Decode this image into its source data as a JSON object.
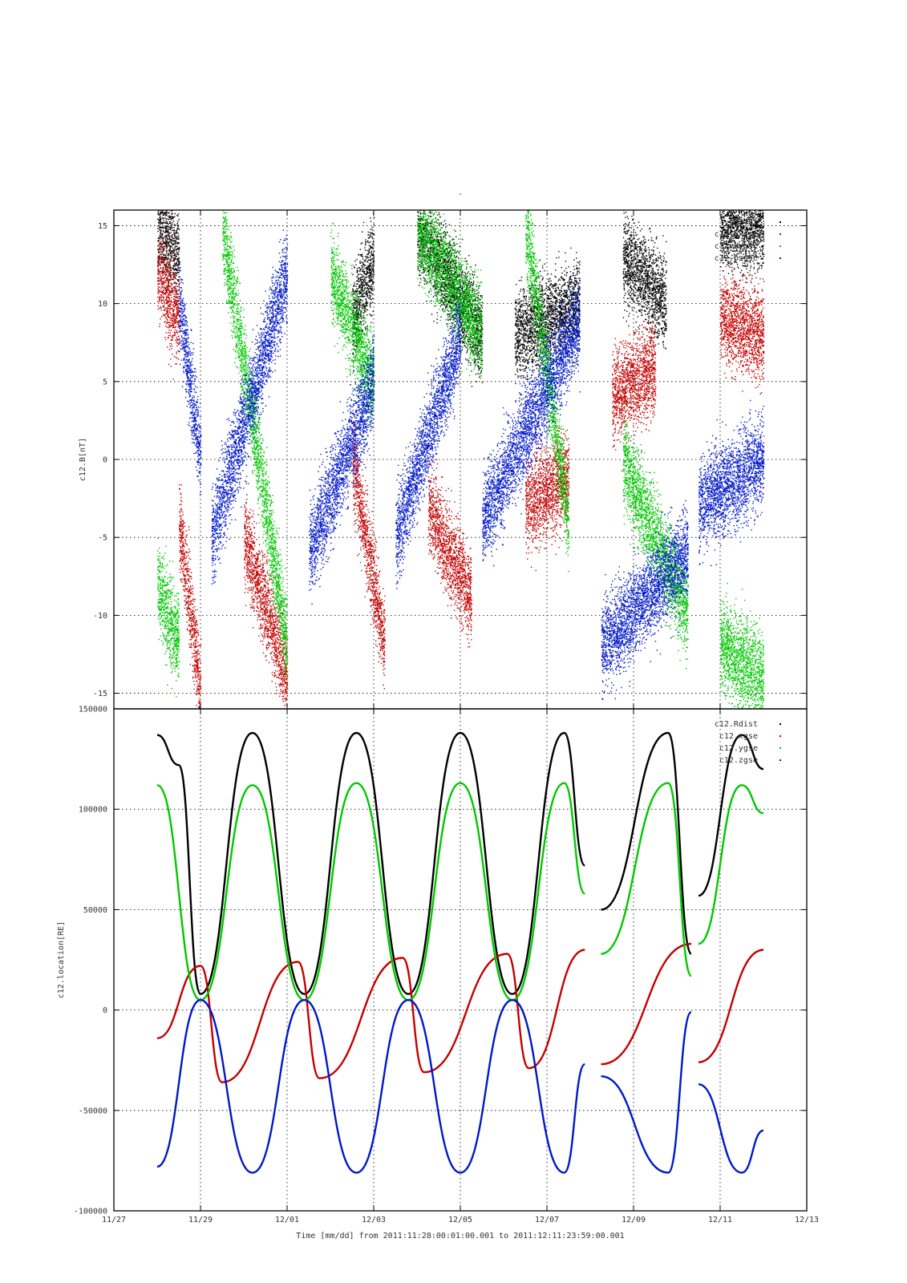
{
  "figure": {
    "top_title": "-",
    "xlabel": "Time [mm/dd]  from 2011:11:28:00:01:00.001  to  2011:12:11:23:59:00.001"
  },
  "colors": {
    "black": "#000000",
    "red": "#c40000",
    "green": "#00c800",
    "blue": "#0018c8"
  },
  "chart_data": [
    {
      "type": "scatter",
      "panel": "top",
      "title": "",
      "xlabel": "",
      "ylabel": "c12.B[nT]",
      "x_axis": "time",
      "xlim": [
        "2011-11-27",
        "2011-12-13"
      ],
      "ylim": [
        -16,
        16
      ],
      "x_ticks": [],
      "y_ticks": [
        -15,
        -10,
        -5,
        0,
        5,
        10,
        15
      ],
      "y_tick_labels": [
        "-15",
        "-10",
        "-5",
        "0",
        "5",
        "10",
        "15"
      ],
      "grid": true,
      "legend_position": "top-right",
      "series": [
        {
          "name": "c12.Bt",
          "color": "black",
          "intervals": [
            {
              "start": "2011-11-28T00:00",
              "end": "2011-11-28T12:00",
              "y0": 15,
              "y1": 13
            },
            {
              "start": "2011-12-02T12:00",
              "end": "2011-12-03T00:00",
              "y0": 9,
              "y1": 13
            },
            {
              "start": "2011-12-04T00:00",
              "end": "2011-12-05T12:00",
              "y0": 15,
              "y1": 8
            },
            {
              "start": "2011-12-06T06:00",
              "end": "2011-12-07T18:00",
              "y0": 8,
              "y1": 10
            },
            {
              "start": "2011-12-08T18:00",
              "end": "2011-12-09T18:00",
              "y0": 13,
              "y1": 10
            },
            {
              "start": "2011-12-11T00:00",
              "end": "2011-12-12T00:00",
              "y0": 15,
              "y1": 15
            }
          ]
        },
        {
          "name": "c12.bxgse",
          "color": "red",
          "intervals": [
            {
              "start": "2011-11-28T00:00",
              "end": "2011-11-28T12:00",
              "y0": 12,
              "y1": 9
            },
            {
              "start": "2011-11-28T12:00",
              "end": "2011-11-29T00:00",
              "y0": -4,
              "y1": -15
            },
            {
              "start": "2011-11-30T00:00",
              "end": "2011-12-01T00:00",
              "y0": -5,
              "y1": -14
            },
            {
              "start": "2011-12-02T12:00",
              "end": "2011-12-03T06:00",
              "y0": 0,
              "y1": -12
            },
            {
              "start": "2011-12-04T06:00",
              "end": "2011-12-05T06:00",
              "y0": -3,
              "y1": -9
            },
            {
              "start": "2011-12-06T12:00",
              "end": "2011-12-07T12:00",
              "y0": -3,
              "y1": -1
            },
            {
              "start": "2011-12-08T12:00",
              "end": "2011-12-09T12:00",
              "y0": 4,
              "y1": 6
            },
            {
              "start": "2011-12-11T00:00",
              "end": "2011-12-12T00:00",
              "y0": 9,
              "y1": 8
            }
          ]
        },
        {
          "name": "c12.bygse",
          "color": "green",
          "intervals": [
            {
              "start": "2011-11-28T00:00",
              "end": "2011-11-28T12:00",
              "y0": -8,
              "y1": -12
            },
            {
              "start": "2011-11-29T12:00",
              "end": "2011-12-01T00:00",
              "y0": 15,
              "y1": -12
            },
            {
              "start": "2011-12-02T00:00",
              "end": "2011-12-03T00:00",
              "y0": 12,
              "y1": 5
            },
            {
              "start": "2011-12-04T00:00",
              "end": "2011-12-05T12:00",
              "y0": 15,
              "y1": 8
            },
            {
              "start": "2011-12-06T12:00",
              "end": "2011-12-07T12:00",
              "y0": 15,
              "y1": -4
            },
            {
              "start": "2011-12-08T18:00",
              "end": "2011-12-10T06:00",
              "y0": 0,
              "y1": -10
            },
            {
              "start": "2011-12-11T00:00",
              "end": "2011-12-12T00:00",
              "y0": -12,
              "y1": -14
            }
          ]
        },
        {
          "name": "c12.bzgse",
          "color": "blue",
          "intervals": [
            {
              "start": "2011-11-28T12:00",
              "end": "2011-11-29T00:00",
              "y0": 10,
              "y1": 0
            },
            {
              "start": "2011-11-29T06:00",
              "end": "2011-12-01T00:00",
              "y0": -5,
              "y1": 12
            },
            {
              "start": "2011-12-01T12:00",
              "end": "2011-12-03T00:00",
              "y0": -6,
              "y1": 5
            },
            {
              "start": "2011-12-03T12:00",
              "end": "2011-12-05T00:00",
              "y0": -5,
              "y1": 8
            },
            {
              "start": "2011-12-05T12:00",
              "end": "2011-12-07T18:00",
              "y0": -4,
              "y1": 9
            },
            {
              "start": "2011-12-08T06:00",
              "end": "2011-12-10T06:00",
              "y0": -12,
              "y1": -6
            },
            {
              "start": "2011-12-10T12:00",
              "end": "2011-12-12T00:00",
              "y0": -3,
              "y1": 0
            }
          ]
        }
      ]
    },
    {
      "type": "line",
      "panel": "bottom",
      "title": "",
      "xlabel": "Time [mm/dd]  from 2011:11:28:00:01:00.001  to  2011:12:11:23:59:00.001",
      "ylabel": "c12.location[RE]",
      "x_axis": "time",
      "xlim": [
        "2011-11-27",
        "2011-12-13"
      ],
      "ylim": [
        -100000,
        150000
      ],
      "x_ticks": [
        "2011-11-27",
        "2011-11-29",
        "2011-12-01",
        "2011-12-03",
        "2011-12-05",
        "2011-12-07",
        "2011-12-09",
        "2011-12-11",
        "2011-12-13"
      ],
      "x_tick_labels": [
        "11/27",
        "11/29",
        "12/01",
        "12/03",
        "12/05",
        "12/07",
        "12/09",
        "12/11",
        "12/13"
      ],
      "y_ticks": [
        -100000,
        -50000,
        0,
        50000,
        100000,
        150000
      ],
      "y_tick_labels": [
        "-100000",
        "-50000",
        "0",
        "50000",
        "100000",
        "150000"
      ],
      "grid": true,
      "legend_position": "top-right",
      "orbit_period_days": 2.4,
      "perigee_times": [
        "2011-11-29T00:00",
        "2011-12-01T09:36",
        "2011-12-03T19:12",
        "2011-12-06T04:48",
        "2011-12-08T14:24",
        "2011-12-10T23:59"
      ],
      "data_gaps": [
        {
          "start": "2011-12-07T21:00",
          "end": "2011-12-08T06:00"
        },
        {
          "start": "2011-12-10T08:00",
          "end": "2011-12-10T12:00"
        }
      ],
      "series": [
        {
          "name": "c12.Rdist",
          "color": "black",
          "points": [
            [
              "2011-11-28T00:00",
              137000
            ],
            [
              "2011-11-28T12:00",
              122000
            ],
            [
              "2011-11-29T00:00",
              8000
            ],
            [
              "2011-11-30T04:48",
              138000
            ],
            [
              "2011-12-01T09:36",
              8000
            ],
            [
              "2011-12-02T14:24",
              138000
            ],
            [
              "2011-12-03T19:12",
              8000
            ],
            [
              "2011-12-05T00:00",
              138000
            ],
            [
              "2011-12-06T04:48",
              8000
            ],
            [
              "2011-12-07T09:36",
              138000
            ],
            [
              "2011-12-07T21:00",
              72000
            ],
            [
              "2011-12-08T06:00",
              50000
            ],
            [
              "2011-12-09T19:12",
              138000
            ],
            [
              "2011-12-10T08:00",
              28000
            ],
            [
              "2011-12-10T12:00",
              57000
            ],
            [
              "2011-12-11T12:00",
              137000
            ],
            [
              "2011-12-12T00:00",
              120000
            ]
          ]
        },
        {
          "name": "c12.xgse",
          "color": "red",
          "points": [
            [
              "2011-11-28T00:00",
              -14000
            ],
            [
              "2011-11-29T00:00",
              22000
            ],
            [
              "2011-11-29T12:00",
              -36000
            ],
            [
              "2011-12-01T06:00",
              24000
            ],
            [
              "2011-12-01T18:00",
              -34000
            ],
            [
              "2011-12-03T16:00",
              26000
            ],
            [
              "2011-12-04T04:00",
              -31000
            ],
            [
              "2011-12-06T02:00",
              28000
            ],
            [
              "2011-12-06T14:00",
              -29000
            ],
            [
              "2011-12-07T21:00",
              30000
            ],
            [
              "2011-12-08T06:00",
              -27000
            ],
            [
              "2011-12-10T08:00",
              33000
            ],
            [
              "2011-12-10T12:00",
              -26000
            ],
            [
              "2011-12-12T00:00",
              30000
            ]
          ]
        },
        {
          "name": "c12.ygse",
          "color": "green",
          "points": [
            [
              "2011-11-28T00:00",
              112000
            ],
            [
              "2011-11-29T00:00",
              5000
            ],
            [
              "2011-11-30T04:48",
              112000
            ],
            [
              "2011-12-01T09:36",
              5000
            ],
            [
              "2011-12-02T14:24",
              113000
            ],
            [
              "2011-12-03T19:12",
              5000
            ],
            [
              "2011-12-05T00:00",
              113000
            ],
            [
              "2011-12-06T04:48",
              5000
            ],
            [
              "2011-12-07T09:36",
              113000
            ],
            [
              "2011-12-07T21:00",
              58000
            ],
            [
              "2011-12-08T06:00",
              28000
            ],
            [
              "2011-12-09T19:12",
              113000
            ],
            [
              "2011-12-10T08:00",
              17000
            ],
            [
              "2011-12-10T12:00",
              33000
            ],
            [
              "2011-12-11T12:00",
              112000
            ],
            [
              "2011-12-12T00:00",
              98000
            ]
          ]
        },
        {
          "name": "c12.zgse",
          "color": "blue",
          "points": [
            [
              "2011-11-28T00:00",
              -78000
            ],
            [
              "2011-11-29T00:00",
              5000
            ],
            [
              "2011-11-30T04:48",
              -81000
            ],
            [
              "2011-12-01T09:36",
              5000
            ],
            [
              "2011-12-02T14:24",
              -81000
            ],
            [
              "2011-12-03T19:12",
              5000
            ],
            [
              "2011-12-05T00:00",
              -81000
            ],
            [
              "2011-12-06T04:48",
              5000
            ],
            [
              "2011-12-07T09:36",
              -81000
            ],
            [
              "2011-12-07T21:00",
              -27000
            ],
            [
              "2011-12-08T06:00",
              -33000
            ],
            [
              "2011-12-09T19:12",
              -81000
            ],
            [
              "2011-12-10T08:00",
              -1000
            ],
            [
              "2011-12-10T12:00",
              -37000
            ],
            [
              "2011-12-11T12:00",
              -81000
            ],
            [
              "2011-12-12T00:00",
              -60000
            ]
          ]
        }
      ]
    }
  ]
}
